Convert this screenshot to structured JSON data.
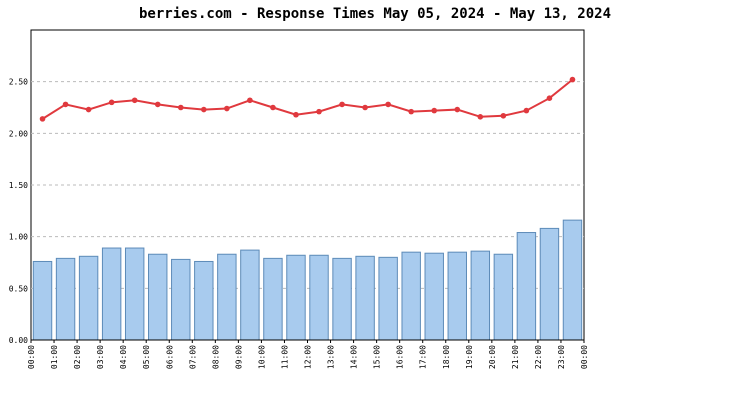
{
  "chart_data": {
    "type": "bar",
    "title": "berries.com - Response Times May 05, 2024 - May 13, 2024",
    "x_labels": [
      "00:00",
      "01:00",
      "02:00",
      "03:00",
      "04:00",
      "05:00",
      "06:00",
      "07:00",
      "08:00",
      "09:00",
      "10:00",
      "11:00",
      "12:00",
      "13:00",
      "14:00",
      "15:00",
      "16:00",
      "17:00",
      "18:00",
      "19:00",
      "20:00",
      "21:00",
      "22:00",
      "23:00",
      "00:00"
    ],
    "series": [
      {
        "kind": "bar",
        "color": "#a8cbee",
        "values": [
          0.76,
          0.79,
          0.81,
          0.89,
          0.89,
          0.83,
          0.78,
          0.76,
          0.83,
          0.87,
          0.79,
          0.82,
          0.82,
          0.79,
          0.81,
          0.8,
          0.85,
          0.84,
          0.85,
          0.86,
          0.83,
          1.04,
          1.08,
          1.16
        ]
      },
      {
        "kind": "line",
        "color": "#e0393e",
        "values": [
          2.14,
          2.28,
          2.23,
          2.3,
          2.32,
          2.28,
          2.25,
          2.23,
          2.24,
          2.32,
          2.25,
          2.18,
          2.21,
          2.28,
          2.25,
          2.28,
          2.21,
          2.22,
          2.23,
          2.16,
          2.17,
          2.22,
          2.34,
          2.52
        ]
      }
    ],
    "ylim": [
      0,
      3
    ],
    "yticks": [
      {
        "value": 0,
        "label": "0.00"
      },
      {
        "value": 0.5,
        "label": "0.50"
      },
      {
        "value": 1,
        "label": "1.00"
      },
      {
        "value": 1.5,
        "label": "1.50"
      },
      {
        "value": 2,
        "label": "2.00"
      },
      {
        "value": 2.5,
        "label": "2.50"
      }
    ],
    "grid": true
  }
}
